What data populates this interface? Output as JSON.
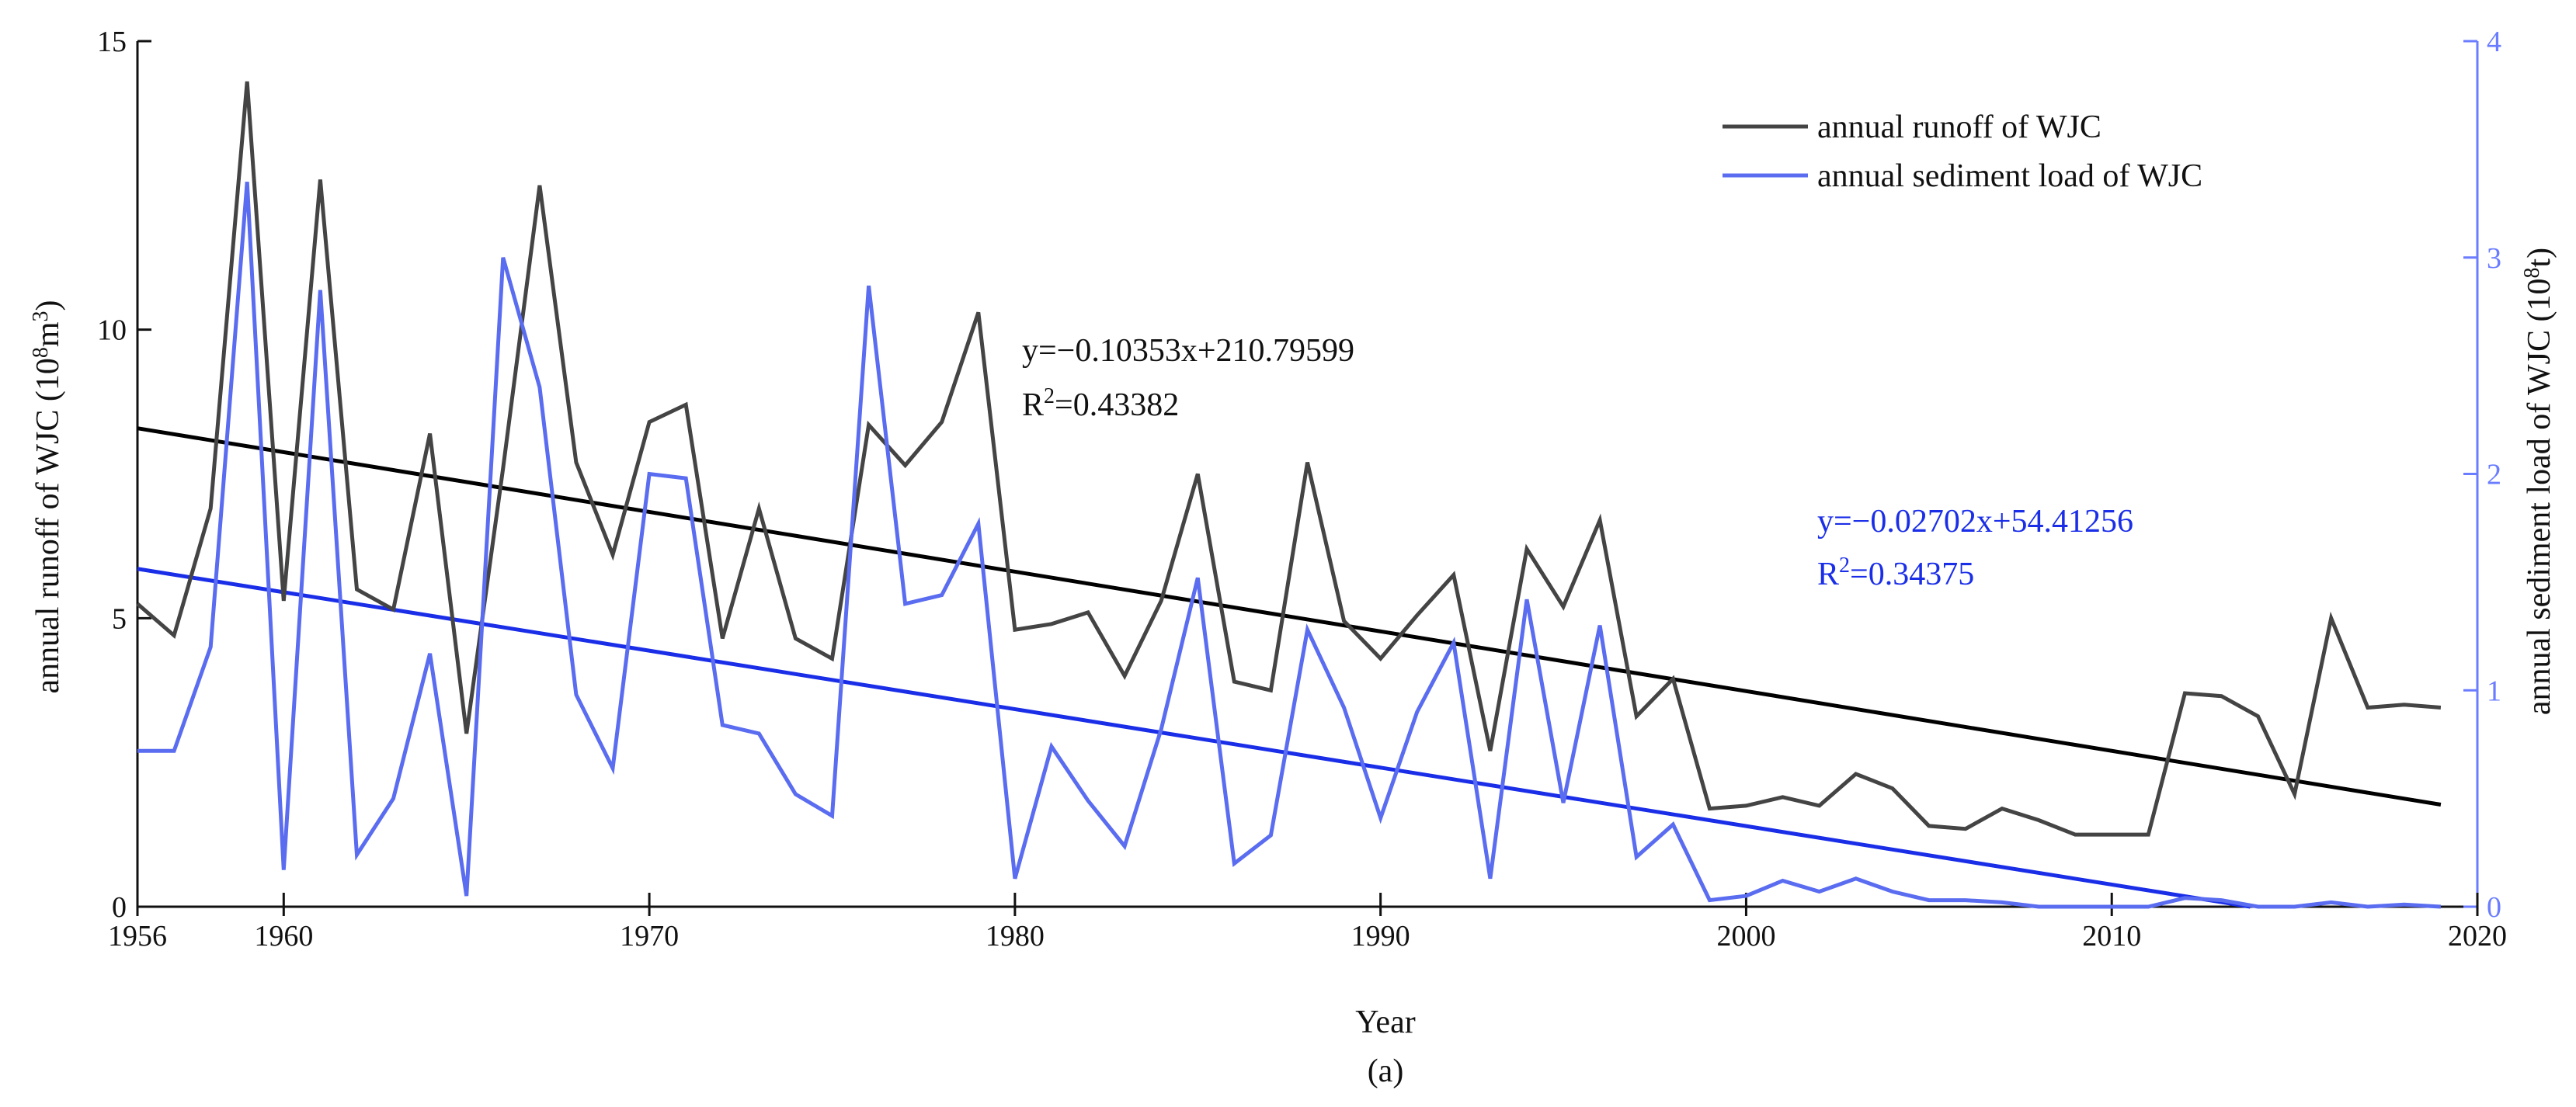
{
  "chart_data": {
    "type": "line",
    "caption": "(a)",
    "xlabel": "Year",
    "xlim": [
      1956,
      2020
    ],
    "xticks": [
      1956,
      1960,
      1970,
      1980,
      1990,
      2000,
      2010,
      2020
    ],
    "ylabel_left": "annual runoff of WJC (10",
    "ylabel_left_sup": "8",
    "ylabel_left_mid": "m",
    "ylabel_left_sup2": "3",
    "ylabel_left_end": ")",
    "ylim_left": [
      0,
      15
    ],
    "yticks_left": [
      0,
      5,
      10,
      15
    ],
    "ylabel_right": "annual sediment load  of WJC (10",
    "ylabel_right_sup": "8",
    "ylabel_right_end": "t)",
    "ylim_right": [
      0,
      4
    ],
    "yticks_right": [
      0,
      1,
      2,
      3,
      4
    ],
    "colors": {
      "runoff": "#444444",
      "sediment": "#5a6cf0",
      "runoff_trend": "#000000",
      "sediment_trend": "#1a2ee8",
      "right_axis": "#6a7cff",
      "sediment_eq_text": "#1a2ee8",
      "runoff_eq_text": "#111111"
    },
    "x": [
      1956,
      1957,
      1958,
      1959,
      1960,
      1961,
      1962,
      1963,
      1964,
      1965,
      1966,
      1967,
      1968,
      1969,
      1970,
      1971,
      1972,
      1973,
      1974,
      1975,
      1976,
      1977,
      1978,
      1979,
      1980,
      1981,
      1982,
      1983,
      1984,
      1985,
      1986,
      1987,
      1988,
      1989,
      1990,
      1991,
      1992,
      1993,
      1994,
      1995,
      1996,
      1997,
      1998,
      1999,
      2000,
      2001,
      2002,
      2003,
      2004,
      2005,
      2006,
      2007,
      2008,
      2009,
      2010,
      2011,
      2012,
      2013,
      2014,
      2015,
      2016,
      2017,
      2018,
      2019
    ],
    "series": [
      {
        "name": "annual runoff of WJC",
        "axis": "left",
        "values": [
          5.25,
          4.7,
          6.9,
          14.3,
          5.3,
          12.6,
          5.5,
          5.15,
          8.2,
          3.0,
          7.6,
          12.5,
          7.7,
          6.1,
          8.4,
          8.7,
          4.65,
          6.9,
          4.65,
          4.3,
          8.35,
          7.65,
          8.4,
          10.3,
          4.8,
          4.9,
          5.1,
          4.0,
          5.3,
          7.5,
          3.9,
          3.75,
          7.7,
          4.95,
          4.3,
          5.05,
          5.75,
          2.7,
          6.2,
          5.2,
          6.7,
          3.3,
          3.95,
          1.7,
          1.75,
          1.9,
          1.75,
          2.3,
          2.05,
          1.4,
          1.35,
          1.7,
          1.5,
          1.25,
          1.25,
          1.25,
          3.7,
          3.65,
          3.3,
          1.95,
          5.0,
          3.45,
          3.5,
          3.45
        ]
      },
      {
        "name": "annual sediment load  of WJC",
        "axis": "right",
        "values": [
          0.72,
          0.72,
          1.2,
          3.35,
          0.17,
          2.85,
          0.24,
          0.5,
          1.17,
          0.05,
          3.0,
          2.4,
          0.98,
          0.64,
          2.0,
          1.98,
          0.84,
          0.8,
          0.52,
          0.42,
          2.87,
          1.4,
          1.44,
          1.77,
          0.13,
          0.74,
          0.49,
          0.28,
          0.82,
          1.52,
          0.2,
          0.33,
          1.28,
          0.92,
          0.41,
          0.9,
          1.22,
          0.13,
          1.42,
          0.48,
          1.3,
          0.23,
          0.38,
          0.03,
          0.05,
          0.12,
          0.07,
          0.13,
          0.07,
          0.03,
          0.03,
          0.02,
          0.0,
          0.0,
          0.0,
          0.0,
          0.04,
          0.03,
          0.0,
          0.0,
          0.02,
          0.0,
          0.01,
          0.0
        ]
      }
    ],
    "trendlines": [
      {
        "name": "runoff trend",
        "axis": "left",
        "slope": -0.10353,
        "intercept": 210.79599,
        "equation": "y=−0.10353x+210.79599",
        "r2_label": "R",
        "r2_sup": "2",
        "r2_value": "=0.43382"
      },
      {
        "name": "sediment trend",
        "axis": "right",
        "slope": -0.02702,
        "intercept": 54.41256,
        "equation": "y=−0.02702x+54.41256",
        "r2_label": "R",
        "r2_sup": "2",
        "r2_value": "=0.34375"
      }
    ],
    "legend": {
      "placement": "top-right",
      "entries": [
        "annual runoff of WJC",
        "annual sediment load  of WJC"
      ]
    }
  }
}
